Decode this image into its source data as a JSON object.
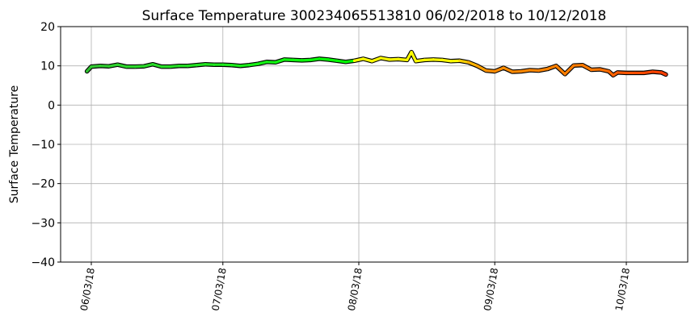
{
  "chart_data": {
    "type": "scatter",
    "title": "Surface Temperature 300234065513810  06/02/2018 to 10/12/2018",
    "xlabel": "",
    "ylabel": "Surface Temperature",
    "ylim": [
      -40,
      20
    ],
    "yticks": [
      -40,
      -30,
      -20,
      -10,
      0,
      10,
      20
    ],
    "ytick_labels": [
      "−40",
      "−30",
      "−20",
      "−10",
      "0",
      "10",
      "20"
    ],
    "xlim": [
      "2018-05-27",
      "2018-10-17"
    ],
    "xticks": [
      "2018-06-03",
      "2018-07-03",
      "2018-08-03",
      "2018-09-03",
      "2018-10-03"
    ],
    "xtick_labels": [
      "06/03/18",
      "07/03/18",
      "08/03/18",
      "09/03/18",
      "10/03/18"
    ],
    "grid": true,
    "colormap": "time-gradient green-yellow-orange-red",
    "series": [
      {
        "x": [
          "2018-06-02",
          "2018-06-03",
          "2018-06-05",
          "2018-06-07",
          "2018-06-09",
          "2018-06-11",
          "2018-06-13",
          "2018-06-15",
          "2018-06-17",
          "2018-06-19",
          "2018-06-21",
          "2018-06-23",
          "2018-06-25",
          "2018-06-27",
          "2018-06-29",
          "2018-07-01",
          "2018-07-03",
          "2018-07-05",
          "2018-07-07",
          "2018-07-09",
          "2018-07-11",
          "2018-07-13",
          "2018-07-15",
          "2018-07-17",
          "2018-07-19",
          "2018-07-21",
          "2018-07-23",
          "2018-07-25",
          "2018-07-27",
          "2018-07-29",
          "2018-07-31",
          "2018-08-02",
          "2018-08-04",
          "2018-08-06",
          "2018-08-08",
          "2018-08-10",
          "2018-08-12",
          "2018-08-14",
          "2018-08-15",
          "2018-08-16",
          "2018-08-18",
          "2018-08-20",
          "2018-08-22",
          "2018-08-24",
          "2018-08-26",
          "2018-08-28",
          "2018-08-30",
          "2018-09-01",
          "2018-09-03",
          "2018-09-05",
          "2018-09-07",
          "2018-09-09",
          "2018-09-11",
          "2018-09-13",
          "2018-09-15",
          "2018-09-17",
          "2018-09-19",
          "2018-09-21",
          "2018-09-23",
          "2018-09-25",
          "2018-09-27",
          "2018-09-29",
          "2018-09-30",
          "2018-10-01",
          "2018-10-03",
          "2018-10-05",
          "2018-10-07",
          "2018-10-09",
          "2018-10-11",
          "2018-10-12"
        ],
        "y": [
          8.6,
          9.8,
          10.0,
          9.9,
          10.3,
          9.8,
          9.8,
          9.9,
          10.4,
          9.8,
          9.8,
          10.0,
          10.0,
          10.2,
          10.4,
          10.3,
          10.3,
          10.2,
          10.0,
          10.2,
          10.5,
          11.0,
          10.9,
          11.6,
          11.5,
          11.4,
          11.5,
          11.8,
          11.6,
          11.3,
          11.0,
          11.3,
          11.8,
          11.2,
          12.0,
          11.6,
          11.7,
          11.5,
          13.5,
          11.2,
          11.5,
          11.6,
          11.5,
          11.2,
          11.3,
          10.9,
          10.0,
          8.8,
          8.6,
          9.5,
          8.5,
          8.6,
          8.9,
          8.8,
          9.2,
          10.0,
          7.9,
          10.1,
          10.2,
          9.0,
          9.1,
          8.6,
          7.6,
          8.3,
          8.2,
          8.2,
          8.2,
          8.5,
          8.3,
          7.8
        ],
        "colors": [
          "#2fc02f",
          "#33cc33",
          "#2fd02f",
          "#2ed22e",
          "#2dd42d",
          "#2cd62c",
          "#2bd82b",
          "#2ada2a",
          "#29dc29",
          "#27de27",
          "#26e026",
          "#25e225",
          "#23e423",
          "#22e622",
          "#20e820",
          "#1fea1f",
          "#1dec1d",
          "#1bee1b",
          "#19f019",
          "#17f217",
          "#15f415",
          "#13f613",
          "#11f811",
          "#0ffa0f",
          "#0dfb0d",
          "#0bfc0b",
          "#09fd09",
          "#07fe07",
          "#05ff05",
          "#03ff03",
          "#02ff02",
          "#ffff00",
          "#ffff00",
          "#ffff00",
          "#ffff00",
          "#ffff00",
          "#ffff00",
          "#ffff00",
          "#ffff00",
          "#ffff00",
          "#ffff00",
          "#ffff00",
          "#ffff00",
          "#ffff00",
          "#ffd200",
          "#ffb400",
          "#ffa000",
          "#ff9000",
          "#ff8c00",
          "#ff8c00",
          "#ff8a00",
          "#ff8800",
          "#ff8600",
          "#ff8400",
          "#ff8200",
          "#ff8000",
          "#ff7e00",
          "#ff7c00",
          "#ff7a00",
          "#ff7800",
          "#ff7000",
          "#ff6800",
          "#ff6000",
          "#ff5800",
          "#ff5200",
          "#ff4c00",
          "#ff4800",
          "#ff4400",
          "#ff4000",
          "#ff3c00"
        ]
      }
    ]
  }
}
